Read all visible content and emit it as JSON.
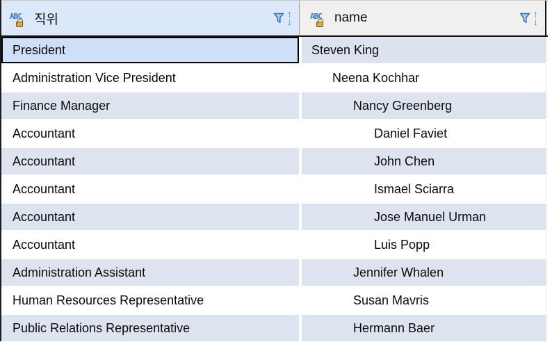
{
  "icons": {
    "type_label": "ABC",
    "filter_icon": "funnel",
    "sort_icon": "up-down-arrows",
    "lock_icon": "padlock"
  },
  "table": {
    "columns": [
      {
        "label": "직위",
        "type": "text",
        "locked": true
      },
      {
        "label": "name",
        "type": "text",
        "locked": true
      }
    ],
    "rows": [
      {
        "position": "President",
        "name": "Steven King",
        "state": "selected"
      },
      {
        "position": "Administration Vice President",
        "name": "      Neena Kochhar"
      },
      {
        "position": "Finance Manager",
        "name": "            Nancy Greenberg"
      },
      {
        "position": "Accountant",
        "name": "                  Daniel Faviet"
      },
      {
        "position": "Accountant",
        "name": "                  John Chen"
      },
      {
        "position": "Accountant",
        "name": "                  Ismael Sciarra"
      },
      {
        "position": "Accountant",
        "name": "                  Jose Manuel Urman"
      },
      {
        "position": "Accountant",
        "name": "                  Luis Popp"
      },
      {
        "position": "Administration Assistant",
        "name": "            Jennifer Whalen"
      },
      {
        "position": "Human Resources Representative",
        "name": "            Susan Mavris"
      },
      {
        "position": "Public Relations Representative",
        "name": "            Hermann Baer"
      }
    ]
  },
  "colors": {
    "header_position_bg": "#dce9fb",
    "header_name_bg": "#f1f0ee",
    "stripe_row_bg": "#dee4ef",
    "selected_cell_bg": "#cfdff7",
    "selected_row_bg": "#dce2ee",
    "icon_blue": "#3f86cc",
    "funnel_fill": "#aecce9",
    "lock_gold": "#dcab3c",
    "grid_border": "#111111"
  }
}
